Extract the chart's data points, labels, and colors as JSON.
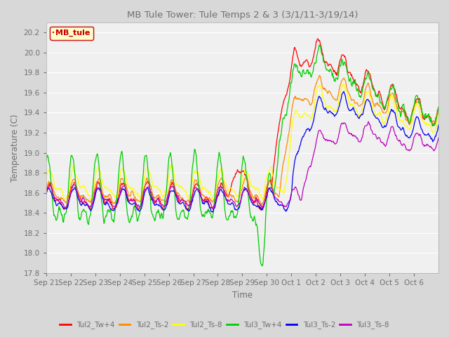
{
  "title": "MB Tule Tower: Tule Temps 2 & 3 (3/1/11-3/19/14)",
  "xlabel": "Time",
  "ylabel": "Temperature (C)",
  "ylim": [
    17.8,
    20.3
  ],
  "legend_label": "MB_tule",
  "series": {
    "Tul2_Tw+4": {
      "color": "#ff0000"
    },
    "Tul2_Ts-2": {
      "color": "#ff8800"
    },
    "Tul2_Ts-8": {
      "color": "#ffff00"
    },
    "Tul3_Tw+4": {
      "color": "#00cc00"
    },
    "Tul3_Ts-2": {
      "color": "#0000ee"
    },
    "Tul3_Ts-8": {
      "color": "#bb00bb"
    }
  },
  "xtick_labels": [
    "Sep 21",
    "Sep 22",
    "Sep 23",
    "Sep 24",
    "Sep 25",
    "Sep 26",
    "Sep 27",
    "Sep 28",
    "Sep 29",
    "Sep 30",
    "Oct 1",
    "Oct 2",
    "Oct 3",
    "Oct 4",
    "Oct 5",
    "Oct 6"
  ],
  "ytick_labels": [
    "17.8",
    "18.0",
    "18.2",
    "18.4",
    "18.6",
    "18.8",
    "19.0",
    "19.2",
    "19.4",
    "19.6",
    "19.8",
    "20.0",
    "20.2"
  ],
  "background_color": "#d8d8d8",
  "plot_bg_color": "#f0f0f0",
  "grid_color": "#ffffff",
  "title_color": "#707070",
  "label_color": "#707070"
}
